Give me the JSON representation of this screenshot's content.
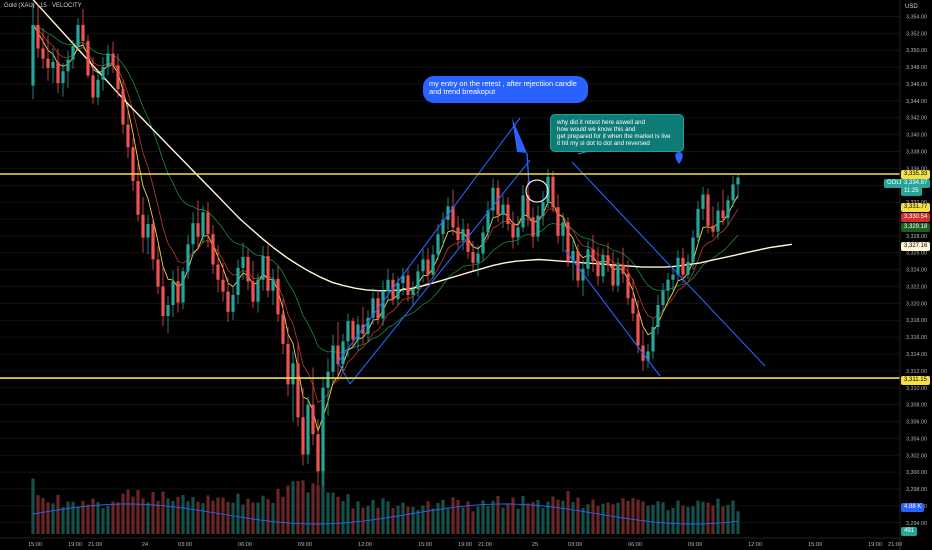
{
  "header": {
    "title": "Gold (XAU) · 15 · VELOCITY",
    "currency": "USD"
  },
  "colors": {
    "bg": "#000000",
    "up": "#26a69a",
    "down": "#ef5350",
    "level": "#f5e042",
    "channel": "#2962ff",
    "sma_white": "#fff6d5",
    "ema_yellow": "#f0d24a",
    "ema_red": "#c0392b",
    "ema_green": "#1b8a3d",
    "vol_ma": "#2962ff"
  },
  "annotations": {
    "callout_entry": "my entry on the retest , after rejectiion candle and trend breakoput",
    "callout_question_1": "why did it retest here aswell and",
    "callout_question_2": " how would we know this and",
    "callout_question_3": "get prepared for it when the market is live",
    "callout_question_4": "it hit my sl dot to dot and reversed"
  },
  "price_tags": {
    "resistance": "3,335.33",
    "gold_label": "GOLD",
    "gold_price": "3,334.87",
    "countdown": "11:25",
    "p1": "3,331.77",
    "p2": "3,330.54",
    "p3": "3,329.18",
    "p4": "3,327.16",
    "support": "3,311.15",
    "volume": "4.88 K",
    "volume2": "491"
  },
  "chart_data": {
    "type": "candlestick",
    "symbol": "GOLD",
    "timeframe": "15",
    "y_axis": {
      "min": 3293.5,
      "max": 3355.0,
      "ticks": [
        "3,354.00",
        "3,352.00",
        "3,350.00",
        "3,348.00",
        "3,346.00",
        "3,344.00",
        "3,342.00",
        "3,340.00",
        "3,338.00",
        "3,336.00",
        "3,334.00",
        "3,332.00",
        "3,330.00",
        "3,328.00",
        "3,326.00",
        "3,324.00",
        "3,322.00",
        "3,320.00",
        "3,318.00",
        "3,316.00",
        "3,314.00",
        "3,312.00",
        "3,310.00",
        "3,308.00",
        "3,306.00",
        "3,304.00",
        "3,302.00",
        "3,300.00",
        "3,298.00",
        "3,296.00",
        "3,294.00"
      ],
      "tick_values": [
        3354,
        3352,
        3350,
        3348,
        3346,
        3344,
        3342,
        3340,
        3338,
        3336,
        3334,
        3332,
        3330,
        3328,
        3326,
        3324,
        3322,
        3320,
        3318,
        3316,
        3314,
        3312,
        3310,
        3308,
        3306,
        3304,
        3302,
        3300,
        3298,
        3296,
        3294
      ]
    },
    "x_axis": {
      "labels": [
        "15:00",
        "19:00",
        "21:00",
        "24",
        "03:00",
        "06:00",
        "09:00",
        "12:00",
        "15:00",
        "19:00",
        "21:00",
        "25",
        "03:00",
        "06:00",
        "09:00",
        "12:00",
        "15:00",
        "19:00",
        "21:00",
        "26"
      ],
      "bar_index": [
        0,
        8,
        12,
        22,
        30,
        42,
        54,
        66,
        78,
        86,
        90,
        100,
        108,
        120,
        132,
        144,
        156,
        168,
        172,
        184
      ]
    },
    "horizontal_levels": [
      3335.33,
      3311.15
    ],
    "last_price": 3334.87,
    "series": [
      {
        "name": "GOLD",
        "ohlc": [
          [
            3345.8,
            3355.5,
            3344.2,
            3353.0
          ],
          [
            3353.0,
            3355.5,
            3349.1,
            3350.2
          ],
          [
            3350.2,
            3352.6,
            3347.8,
            3349.0
          ],
          [
            3349.0,
            3351.8,
            3346.4,
            3347.9
          ],
          [
            3347.9,
            3350.3,
            3346.1,
            3348.6
          ],
          [
            3348.6,
            3350.2,
            3344.9,
            3346.1
          ],
          [
            3346.1,
            3348.5,
            3344.5,
            3347.5
          ],
          [
            3347.5,
            3349.9,
            3345.5,
            3348.9
          ],
          [
            3348.9,
            3351.2,
            3347.8,
            3350.5
          ],
          [
            3350.5,
            3353.8,
            3349.9,
            3353.0
          ],
          [
            3353.0,
            3354.9,
            3350.6,
            3351.1
          ],
          [
            3351.1,
            3351.8,
            3346.7,
            3347.0
          ],
          [
            3347.0,
            3349.2,
            3343.6,
            3344.4
          ],
          [
            3344.4,
            3347.3,
            3343.5,
            3346.5
          ],
          [
            3346.5,
            3349.2,
            3345.2,
            3348.0
          ],
          [
            3348.0,
            3350.6,
            3347.0,
            3349.6
          ],
          [
            3349.6,
            3351.0,
            3347.3,
            3348.2
          ],
          [
            3348.2,
            3349.6,
            3344.4,
            3345.4
          ],
          [
            3345.4,
            3346.4,
            3340.1,
            3341.2
          ],
          [
            3341.2,
            3343.5,
            3337.2,
            3338.5
          ],
          [
            3338.5,
            3339.6,
            3333.3,
            3334.5
          ],
          [
            3334.5,
            3336.6,
            3329.7,
            3330.5
          ],
          [
            3330.5,
            3332.6,
            3326.0,
            3327.8
          ],
          [
            3327.8,
            3330.5,
            3325.8,
            3329.4
          ],
          [
            3329.4,
            3330.2,
            3324.0,
            3325.2
          ],
          [
            3325.2,
            3326.8,
            3321.1,
            3322.0
          ],
          [
            3322.0,
            3324.3,
            3317.3,
            3318.5
          ],
          [
            3318.5,
            3320.9,
            3316.5,
            3319.8
          ],
          [
            3319.8,
            3323.9,
            3318.4,
            3322.6
          ],
          [
            3322.6,
            3324.4,
            3318.9,
            3320.1
          ],
          [
            3320.1,
            3324.3,
            3319.3,
            3323.8
          ],
          [
            3323.8,
            3328.1,
            3322.9,
            3327.0
          ],
          [
            3327.0,
            3330.8,
            3325.6,
            3329.5
          ],
          [
            3329.5,
            3332.2,
            3326.4,
            3327.9
          ],
          [
            3327.9,
            3331.6,
            3327.1,
            3330.8
          ],
          [
            3330.8,
            3332.0,
            3326.6,
            3328.2
          ],
          [
            3328.2,
            3329.3,
            3323.5,
            3324.6
          ],
          [
            3324.6,
            3326.9,
            3321.3,
            3322.8
          ],
          [
            3322.8,
            3324.8,
            3320.2,
            3321.4
          ],
          [
            3321.4,
            3323.1,
            3317.8,
            3319.0
          ],
          [
            3319.0,
            3322.1,
            3318.0,
            3321.0
          ],
          [
            3321.0,
            3325.2,
            3319.9,
            3324.2
          ],
          [
            3324.2,
            3327.2,
            3322.8,
            3325.5
          ],
          [
            3325.5,
            3326.4,
            3321.6,
            3322.6
          ],
          [
            3322.6,
            3325.0,
            3319.4,
            3320.2
          ],
          [
            3320.2,
            3323.5,
            3318.9,
            3322.8
          ],
          [
            3322.8,
            3326.8,
            3321.5,
            3325.6
          ],
          [
            3325.6,
            3326.9,
            3320.7,
            3321.5
          ],
          [
            3321.5,
            3324.1,
            3319.8,
            3322.9
          ],
          [
            3322.9,
            3324.5,
            3317.8,
            3318.7
          ],
          [
            3318.7,
            3320.5,
            3314.0,
            3315.2
          ],
          [
            3315.2,
            3317.2,
            3309.0,
            3310.4
          ],
          [
            3310.4,
            3314.3,
            3306.0,
            3312.9
          ],
          [
            3312.9,
            3315.4,
            3305.4,
            3306.5
          ],
          [
            3306.5,
            3310.0,
            3300.8,
            3302.1
          ],
          [
            3302.1,
            3309.0,
            3301.0,
            3308.0
          ],
          [
            3308.0,
            3312.4,
            3303.2,
            3304.5
          ],
          [
            3304.5,
            3306.3,
            3298.5,
            3300.1
          ],
          [
            3300.1,
            3311.3,
            3298.4,
            3310.0
          ],
          [
            3310.0,
            3313.5,
            3306.7,
            3311.9
          ],
          [
            3311.9,
            3316.3,
            3310.5,
            3315.0
          ],
          [
            3315.0,
            3317.8,
            3311.3,
            3312.8
          ],
          [
            3312.8,
            3316.4,
            3311.9,
            3315.5
          ],
          [
            3315.5,
            3318.8,
            3313.6,
            3317.9
          ],
          [
            3317.9,
            3318.3,
            3314.8,
            3315.7
          ],
          [
            3315.7,
            3318.5,
            3314.3,
            3317.5
          ],
          [
            3317.5,
            3319.6,
            3315.2,
            3316.4
          ],
          [
            3316.4,
            3319.2,
            3315.4,
            3318.3
          ],
          [
            3318.3,
            3321.8,
            3317.5,
            3320.6
          ],
          [
            3320.6,
            3321.6,
            3317.5,
            3318.2
          ],
          [
            3318.2,
            3322.7,
            3317.3,
            3321.4
          ],
          [
            3321.4,
            3324.1,
            3320.4,
            3322.8
          ],
          [
            3322.8,
            3323.6,
            3319.8,
            3320.5
          ],
          [
            3320.5,
            3323.2,
            3319.8,
            3322.4
          ],
          [
            3322.4,
            3324.2,
            3321.0,
            3323.3
          ],
          [
            3323.3,
            3324.1,
            3320.2,
            3321.0
          ],
          [
            3321.0,
            3322.6,
            3319.7,
            3321.7
          ],
          [
            3321.7,
            3324.6,
            3320.8,
            3323.8
          ],
          [
            3323.8,
            3326.4,
            3322.5,
            3325.2
          ],
          [
            3325.2,
            3326.6,
            3322.6,
            3323.4
          ],
          [
            3323.4,
            3326.9,
            3322.9,
            3325.8
          ],
          [
            3325.8,
            3329.4,
            3325.1,
            3328.2
          ],
          [
            3328.2,
            3330.8,
            3326.7,
            3329.9
          ],
          [
            3329.9,
            3332.6,
            3328.7,
            3331.5
          ],
          [
            3331.5,
            3333.5,
            3328.1,
            3329.0
          ],
          [
            3329.0,
            3330.4,
            3326.6,
            3327.5
          ],
          [
            3327.5,
            3330.0,
            3326.3,
            3328.8
          ],
          [
            3328.8,
            3329.5,
            3325.3,
            3326.1
          ],
          [
            3326.1,
            3327.4,
            3323.9,
            3324.8
          ],
          [
            3324.8,
            3326.9,
            3323.2,
            3325.9
          ],
          [
            3325.9,
            3329.2,
            3325.0,
            3328.4
          ],
          [
            3328.4,
            3332.1,
            3327.6,
            3331.0
          ],
          [
            3331.0,
            3334.8,
            3330.0,
            3333.7
          ],
          [
            3333.7,
            3334.6,
            3329.6,
            3330.5
          ],
          [
            3330.5,
            3332.8,
            3328.9,
            3331.7
          ],
          [
            3331.7,
            3332.6,
            3328.6,
            3329.4
          ],
          [
            3329.4,
            3330.9,
            3326.5,
            3327.8
          ],
          [
            3327.8,
            3330.3,
            3326.9,
            3329.0
          ],
          [
            3329.0,
            3334.0,
            3328.5,
            3332.8
          ],
          [
            3332.8,
            3334.5,
            3329.1,
            3330.2
          ],
          [
            3330.2,
            3331.4,
            3326.6,
            3327.9
          ],
          [
            3327.9,
            3331.6,
            3327.3,
            3330.4
          ],
          [
            3330.4,
            3333.3,
            3329.2,
            3332.0
          ],
          [
            3332.0,
            3335.9,
            3331.3,
            3335.0
          ],
          [
            3335.0,
            3335.7,
            3330.8,
            3331.4
          ],
          [
            3331.4,
            3332.9,
            3327.1,
            3328.0
          ],
          [
            3328.0,
            3330.7,
            3326.1,
            3329.6
          ],
          [
            3329.6,
            3330.2,
            3324.3,
            3325.0
          ],
          [
            3325.0,
            3327.7,
            3322.7,
            3326.2
          ],
          [
            3326.2,
            3327.0,
            3321.9,
            3322.7
          ],
          [
            3322.7,
            3325.2,
            3320.9,
            3324.1
          ],
          [
            3324.1,
            3327.4,
            3323.2,
            3326.4
          ],
          [
            3326.4,
            3328.1,
            3323.7,
            3325.0
          ],
          [
            3325.0,
            3326.7,
            3322.1,
            3323.2
          ],
          [
            3323.2,
            3326.5,
            3322.4,
            3325.7
          ],
          [
            3325.7,
            3327.2,
            3323.7,
            3324.5
          ],
          [
            3324.5,
            3326.1,
            3321.4,
            3322.1
          ],
          [
            3322.1,
            3325.4,
            3321.3,
            3324.6
          ],
          [
            3324.6,
            3326.6,
            3322.4,
            3323.5
          ],
          [
            3323.5,
            3325.1,
            3319.8,
            3320.6
          ],
          [
            3320.6,
            3322.9,
            3317.9,
            3318.8
          ],
          [
            3318.8,
            3320.4,
            3314.1,
            3315.0
          ],
          [
            3315.0,
            3316.9,
            3312.0,
            3313.2
          ],
          [
            3313.2,
            3315.2,
            3312.3,
            3314.3
          ],
          [
            3314.3,
            3318.2,
            3313.4,
            3317.2
          ],
          [
            3317.2,
            3321.0,
            3316.3,
            3319.8
          ],
          [
            3319.8,
            3322.4,
            3318.9,
            3321.5
          ],
          [
            3321.5,
            3323.6,
            3320.3,
            3322.8
          ],
          [
            3322.8,
            3324.3,
            3321.4,
            3323.4
          ],
          [
            3323.4,
            3326.3,
            3322.6,
            3325.4
          ],
          [
            3325.4,
            3326.6,
            3322.4,
            3323.4
          ],
          [
            3323.4,
            3325.8,
            3322.9,
            3324.9
          ],
          [
            3324.9,
            3328.7,
            3324.0,
            3327.8
          ],
          [
            3327.8,
            3332.1,
            3327.0,
            3331.2
          ],
          [
            3331.2,
            3333.8,
            3329.9,
            3332.9
          ],
          [
            3332.9,
            3333.6,
            3328.3,
            3329.2
          ],
          [
            3329.2,
            3331.5,
            3327.8,
            3328.5
          ],
          [
            3328.5,
            3332.0,
            3327.6,
            3331.0
          ],
          [
            3331.0,
            3333.5,
            3329.3,
            3330.1
          ],
          [
            3330.1,
            3332.8,
            3329.2,
            3332.2
          ],
          [
            3332.2,
            3335.1,
            3331.4,
            3334.1
          ],
          [
            3334.1,
            3335.2,
            3332.4,
            3334.9
          ]
        ]
      },
      {
        "name": "SMA",
        "type": "line",
        "color": "#fff6d5",
        "values": [
          3356,
          3354.5,
          3353,
          3351.5,
          3350,
          3348.5,
          3347,
          3345.5,
          3344,
          3342.6,
          3341.2,
          3339.8,
          3338.4,
          3337,
          3335.6,
          3334.2,
          3332.8,
          3331.4,
          3330,
          3328.8,
          3327.6,
          3326.5,
          3325.5,
          3324.6,
          3323.8,
          3323.1,
          3322.5,
          3322.1,
          3321.8,
          3321.6,
          3321.5,
          3321.5,
          3321.6,
          3321.8,
          3322.1,
          3322.5,
          3322.9,
          3323.3,
          3323.7,
          3324.1,
          3324.5,
          3324.8,
          3325,
          3325.1,
          3325.2,
          3325.1,
          3325,
          3324.9,
          3324.8,
          3324.7,
          3324.6,
          3324.5,
          3324.4,
          3324.3,
          3324.3,
          3324.3,
          3324.4,
          3324.6,
          3324.8,
          3325.1,
          3325.4,
          3325.7,
          3326,
          3326.3,
          3326.6,
          3326.8,
          3327
        ]
      }
    ]
  }
}
